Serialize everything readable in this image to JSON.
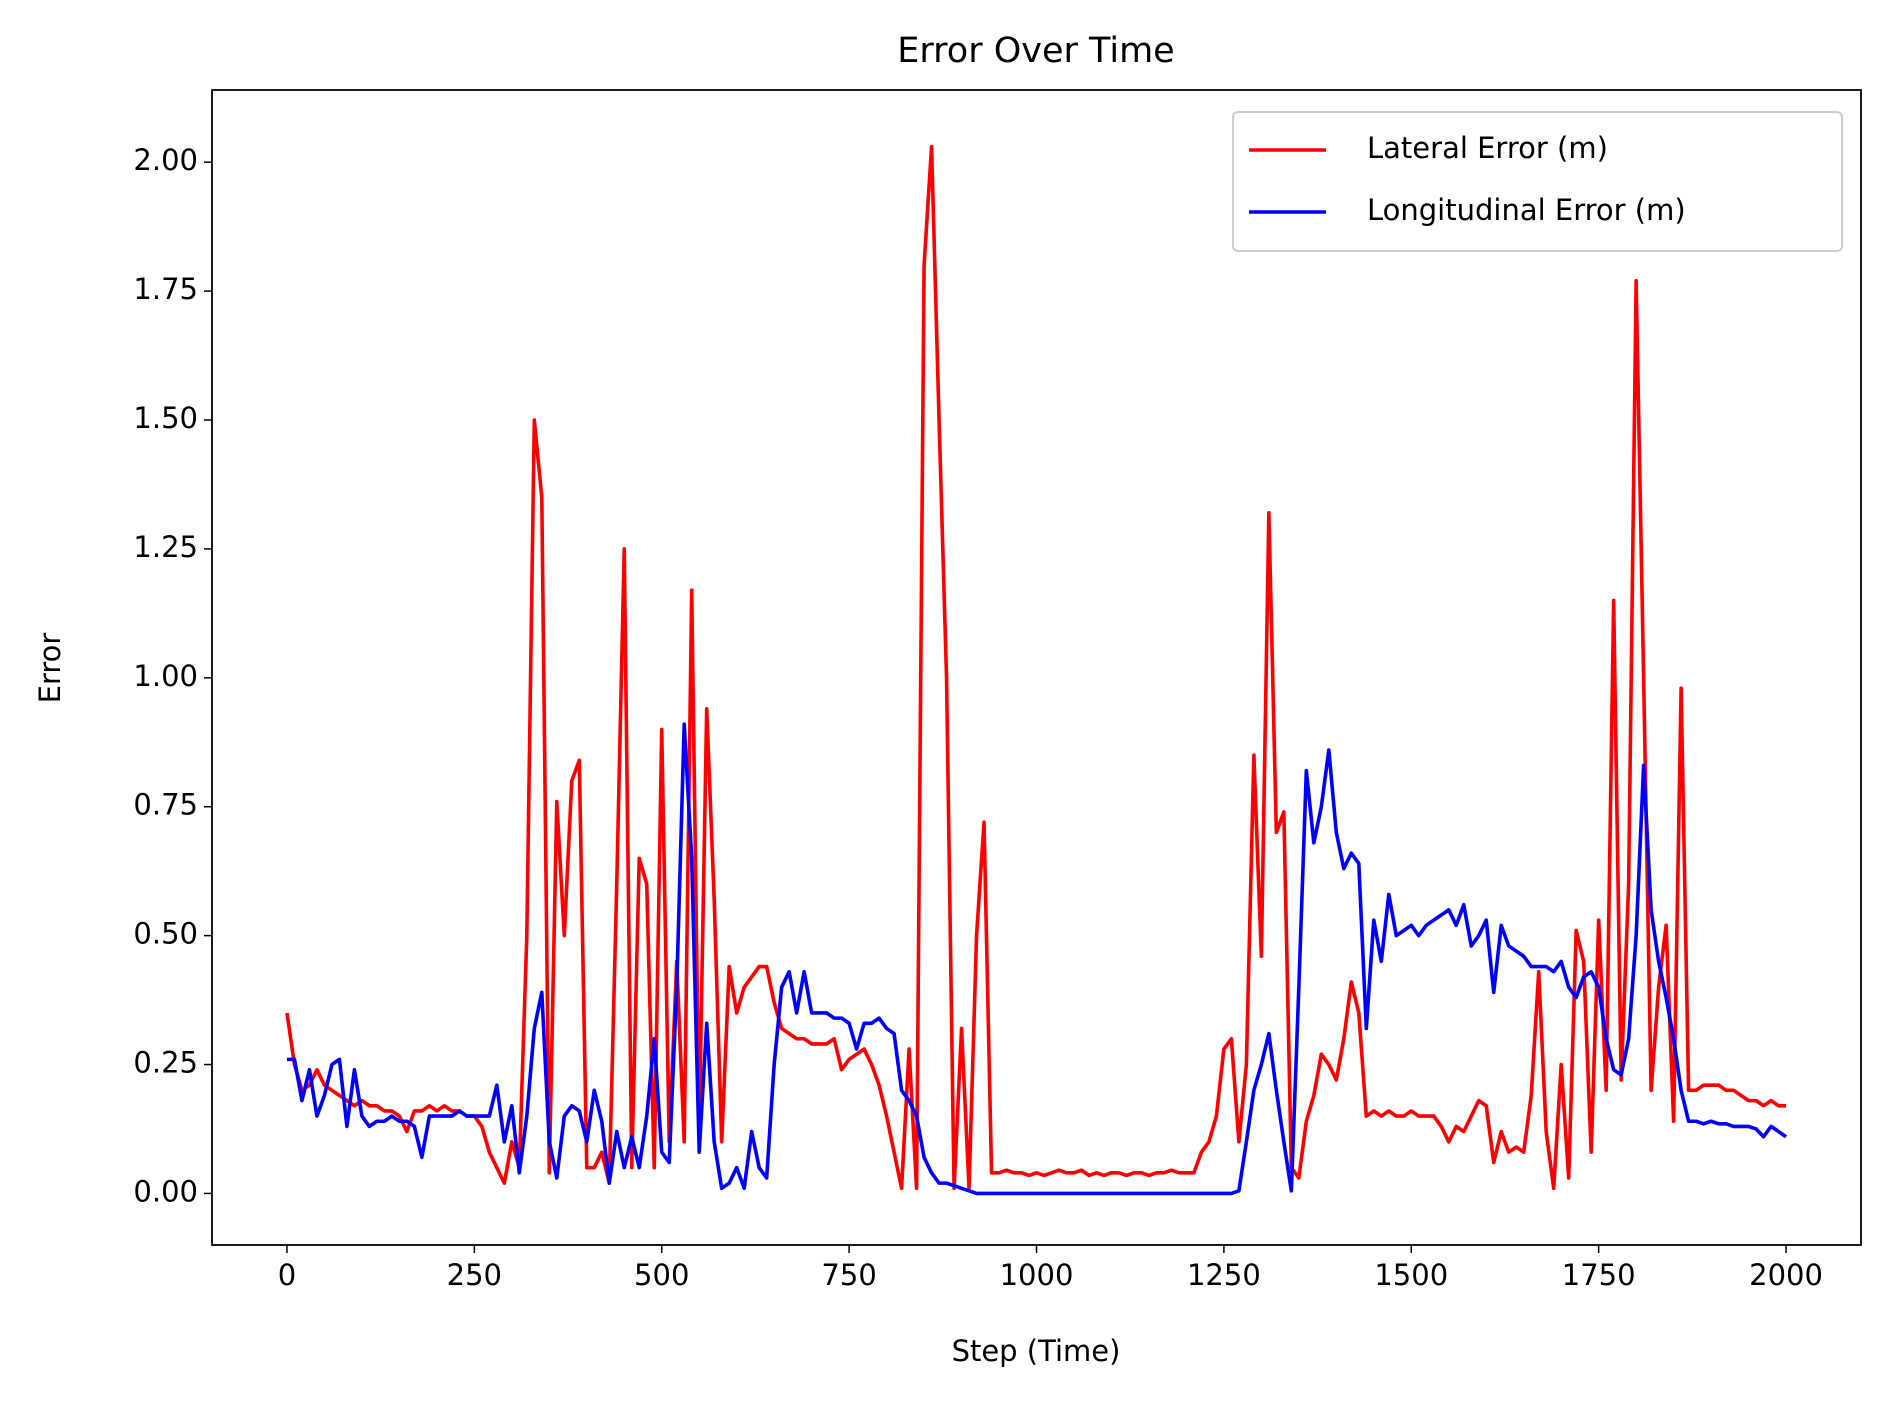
{
  "chart_data": {
    "type": "line",
    "title": "Error Over Time",
    "xlabel": "Step (Time)",
    "ylabel": "Error",
    "x": [
      0,
      10,
      20,
      30,
      40,
      50,
      60,
      70,
      80,
      90,
      100,
      110,
      120,
      130,
      140,
      150,
      160,
      170,
      180,
      190,
      200,
      210,
      220,
      230,
      240,
      250,
      260,
      270,
      280,
      290,
      300,
      310,
      320,
      330,
      340,
      350,
      360,
      370,
      380,
      390,
      400,
      410,
      420,
      430,
      440,
      450,
      460,
      470,
      480,
      490,
      500,
      510,
      520,
      530,
      540,
      550,
      560,
      570,
      580,
      590,
      600,
      610,
      620,
      630,
      640,
      650,
      660,
      670,
      680,
      690,
      700,
      710,
      720,
      730,
      740,
      750,
      760,
      770,
      780,
      790,
      800,
      810,
      820,
      830,
      840,
      850,
      860,
      870,
      880,
      890,
      900,
      910,
      920,
      930,
      940,
      950,
      960,
      970,
      980,
      990,
      1000,
      1010,
      1020,
      1030,
      1040,
      1050,
      1060,
      1070,
      1080,
      1090,
      1100,
      1110,
      1120,
      1130,
      1140,
      1150,
      1160,
      1170,
      1180,
      1190,
      1200,
      1210,
      1220,
      1230,
      1240,
      1250,
      1260,
      1270,
      1280,
      1290,
      1300,
      1310,
      1320,
      1330,
      1340,
      1350,
      1360,
      1370,
      1380,
      1390,
      1400,
      1410,
      1420,
      1430,
      1440,
      1450,
      1460,
      1470,
      1480,
      1490,
      1500,
      1510,
      1520,
      1530,
      1540,
      1550,
      1560,
      1570,
      1580,
      1590,
      1600,
      1610,
      1620,
      1630,
      1640,
      1650,
      1660,
      1670,
      1680,
      1690,
      1700,
      1710,
      1720,
      1730,
      1740,
      1750,
      1760,
      1770,
      1780,
      1790,
      1800,
      1810,
      1820,
      1830,
      1840,
      1850,
      1860,
      1870,
      1880,
      1890,
      1900,
      1910,
      1920,
      1930,
      1940,
      1950,
      1960,
      1970,
      1980,
      1990,
      2000
    ],
    "series": [
      {
        "name": "Lateral Error (m)",
        "color": "#ff0000",
        "values": [
          0.35,
          0.25,
          0.2,
          0.21,
          0.24,
          0.21,
          0.2,
          0.19,
          0.18,
          0.17,
          0.18,
          0.17,
          0.17,
          0.16,
          0.16,
          0.15,
          0.12,
          0.16,
          0.16,
          0.17,
          0.16,
          0.17,
          0.16,
          0.16,
          0.15,
          0.15,
          0.13,
          0.08,
          0.05,
          0.02,
          0.1,
          0.05,
          0.5,
          1.5,
          1.35,
          0.04,
          0.76,
          0.5,
          0.8,
          0.84,
          0.05,
          0.05,
          0.08,
          0.02,
          0.6,
          1.25,
          0.05,
          0.65,
          0.6,
          0.05,
          0.9,
          0.1,
          0.45,
          0.1,
          1.17,
          0.12,
          0.94,
          0.57,
          0.1,
          0.44,
          0.35,
          0.4,
          0.42,
          0.44,
          0.44,
          0.37,
          0.32,
          0.31,
          0.3,
          0.3,
          0.29,
          0.29,
          0.29,
          0.3,
          0.24,
          0.26,
          0.27,
          0.28,
          0.25,
          0.21,
          0.15,
          0.08,
          0.01,
          0.28,
          0.01,
          1.8,
          2.03,
          1.5,
          1.0,
          0.01,
          0.32,
          0.01,
          0.5,
          0.72,
          0.04,
          0.04,
          0.045,
          0.04,
          0.04,
          0.035,
          0.04,
          0.035,
          0.04,
          0.045,
          0.04,
          0.04,
          0.045,
          0.035,
          0.04,
          0.035,
          0.04,
          0.04,
          0.035,
          0.04,
          0.04,
          0.035,
          0.04,
          0.04,
          0.045,
          0.04,
          0.04,
          0.04,
          0.08,
          0.1,
          0.15,
          0.28,
          0.3,
          0.1,
          0.25,
          0.85,
          0.46,
          1.32,
          0.7,
          0.74,
          0.05,
          0.03,
          0.14,
          0.19,
          0.27,
          0.25,
          0.22,
          0.3,
          0.41,
          0.35,
          0.15,
          0.16,
          0.15,
          0.16,
          0.15,
          0.15,
          0.16,
          0.15,
          0.15,
          0.15,
          0.13,
          0.1,
          0.13,
          0.12,
          0.15,
          0.18,
          0.17,
          0.06,
          0.12,
          0.08,
          0.09,
          0.08,
          0.19,
          0.43,
          0.12,
          0.01,
          0.25,
          0.03,
          0.51,
          0.45,
          0.08,
          0.53,
          0.2,
          1.15,
          0.22,
          0.6,
          1.77,
          1.0,
          0.2,
          0.4,
          0.52,
          0.14,
          0.98,
          0.2,
          0.2,
          0.21,
          0.21,
          0.21,
          0.2,
          0.2,
          0.19,
          0.18,
          0.18,
          0.17,
          0.18,
          0.17,
          0.17
        ]
      },
      {
        "name": "Longitudinal Error (m)",
        "color": "#0000ff",
        "values": [
          0.26,
          0.26,
          0.18,
          0.24,
          0.15,
          0.19,
          0.25,
          0.26,
          0.13,
          0.24,
          0.15,
          0.13,
          0.14,
          0.14,
          0.15,
          0.14,
          0.14,
          0.13,
          0.07,
          0.15,
          0.15,
          0.15,
          0.15,
          0.16,
          0.15,
          0.15,
          0.15,
          0.15,
          0.21,
          0.1,
          0.17,
          0.04,
          0.15,
          0.32,
          0.39,
          0.1,
          0.03,
          0.15,
          0.17,
          0.16,
          0.1,
          0.2,
          0.14,
          0.02,
          0.12,
          0.05,
          0.11,
          0.05,
          0.15,
          0.3,
          0.08,
          0.06,
          0.4,
          0.91,
          0.65,
          0.08,
          0.33,
          0.1,
          0.01,
          0.02,
          0.05,
          0.01,
          0.12,
          0.05,
          0.03,
          0.25,
          0.4,
          0.43,
          0.35,
          0.43,
          0.35,
          0.35,
          0.35,
          0.34,
          0.34,
          0.33,
          0.28,
          0.33,
          0.33,
          0.34,
          0.32,
          0.31,
          0.2,
          0.18,
          0.15,
          0.07,
          0.04,
          0.02,
          0.02,
          0.015,
          0.01,
          0.005,
          0,
          0,
          0,
          0,
          0,
          0,
          0,
          0,
          0,
          0,
          0,
          0,
          0,
          0,
          0,
          0,
          0,
          0,
          0,
          0,
          0,
          0,
          0,
          0,
          0,
          0,
          0,
          0,
          0,
          0,
          0,
          0,
          0,
          0,
          0,
          0.005,
          0.1,
          0.2,
          0.25,
          0.31,
          0.2,
          0.1,
          0.005,
          0.4,
          0.82,
          0.68,
          0.75,
          0.86,
          0.7,
          0.63,
          0.66,
          0.64,
          0.32,
          0.53,
          0.45,
          0.58,
          0.5,
          0.51,
          0.52,
          0.5,
          0.52,
          0.53,
          0.54,
          0.55,
          0.52,
          0.56,
          0.48,
          0.5,
          0.53,
          0.39,
          0.52,
          0.48,
          0.47,
          0.46,
          0.44,
          0.44,
          0.44,
          0.43,
          0.45,
          0.4,
          0.38,
          0.42,
          0.43,
          0.4,
          0.3,
          0.24,
          0.23,
          0.3,
          0.5,
          0.83,
          0.55,
          0.45,
          0.38,
          0.3,
          0.2,
          0.14,
          0.14,
          0.135,
          0.14,
          0.135,
          0.135,
          0.13,
          0.13,
          0.13,
          0.125,
          0.11,
          0.13,
          0.12,
          0.11
        ]
      }
    ],
    "xlim": [
      -100,
      2100
    ],
    "xticks": [
      0,
      250,
      500,
      750,
      1000,
      1250,
      1500,
      1750,
      2000
    ],
    "ylim": [
      -0.1,
      2.14
    ],
    "yticks": [
      {
        "value": 0,
        "label": "0.00"
      },
      {
        "value": 0.25,
        "label": "0.25"
      },
      {
        "value": 0.5,
        "label": "0.50"
      },
      {
        "value": 0.75,
        "label": "0.75"
      },
      {
        "value": 1,
        "label": "1.00"
      },
      {
        "value": 1.25,
        "label": "1.25"
      },
      {
        "value": 1.5,
        "label": "1.50"
      },
      {
        "value": 1.75,
        "label": "1.75"
      },
      {
        "value": 2,
        "label": "2.00"
      }
    ],
    "grid": false,
    "legend": "upper right"
  }
}
